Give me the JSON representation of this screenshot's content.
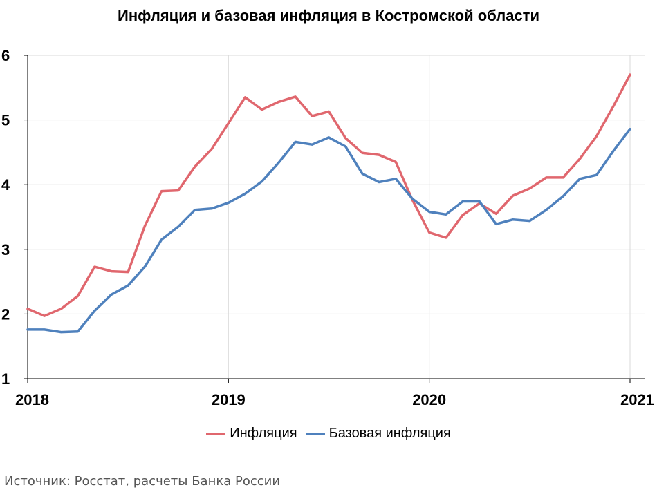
{
  "chart_data": {
    "type": "line",
    "title": "Инфляция и базовая инфляция в Костромской области",
    "xlabel": "",
    "ylabel": "",
    "ylim": [
      1,
      6
    ],
    "y_ticks": [
      "1",
      "2",
      "3",
      "4",
      "5",
      "6"
    ],
    "x_tick_labels": [
      "2018",
      "2019",
      "2020",
      "2021"
    ],
    "x_tick_positions": [
      0,
      12,
      24,
      36
    ],
    "x_range": [
      0,
      37
    ],
    "grid": true,
    "legend_position": "bottom",
    "series": [
      {
        "name": "Инфляция",
        "color": "#E0676E",
        "values": [
          2.08,
          1.97,
          2.08,
          2.28,
          2.73,
          2.66,
          2.65,
          3.36,
          3.9,
          3.91,
          4.28,
          4.55,
          4.95,
          5.35,
          5.16,
          5.28,
          5.36,
          5.06,
          5.13,
          4.72,
          4.49,
          4.46,
          4.35,
          3.76,
          3.26,
          3.18,
          3.53,
          3.71,
          3.55,
          3.83,
          3.94,
          4.11,
          4.11,
          4.4,
          4.75,
          5.21,
          5.7
        ]
      },
      {
        "name": "Базовая инфляция",
        "color": "#4F81BD",
        "values": [
          1.76,
          1.76,
          1.72,
          1.73,
          2.05,
          2.3,
          2.44,
          2.73,
          3.15,
          3.35,
          3.61,
          3.63,
          3.72,
          3.86,
          4.05,
          4.34,
          4.66,
          4.62,
          4.73,
          4.59,
          4.17,
          4.04,
          4.09,
          3.78,
          3.58,
          3.54,
          3.74,
          3.74,
          3.39,
          3.46,
          3.44,
          3.61,
          3.82,
          4.09,
          4.15,
          4.52,
          4.86
        ]
      }
    ]
  },
  "source_text": "Источник: Росстат, расчеты Банка России"
}
